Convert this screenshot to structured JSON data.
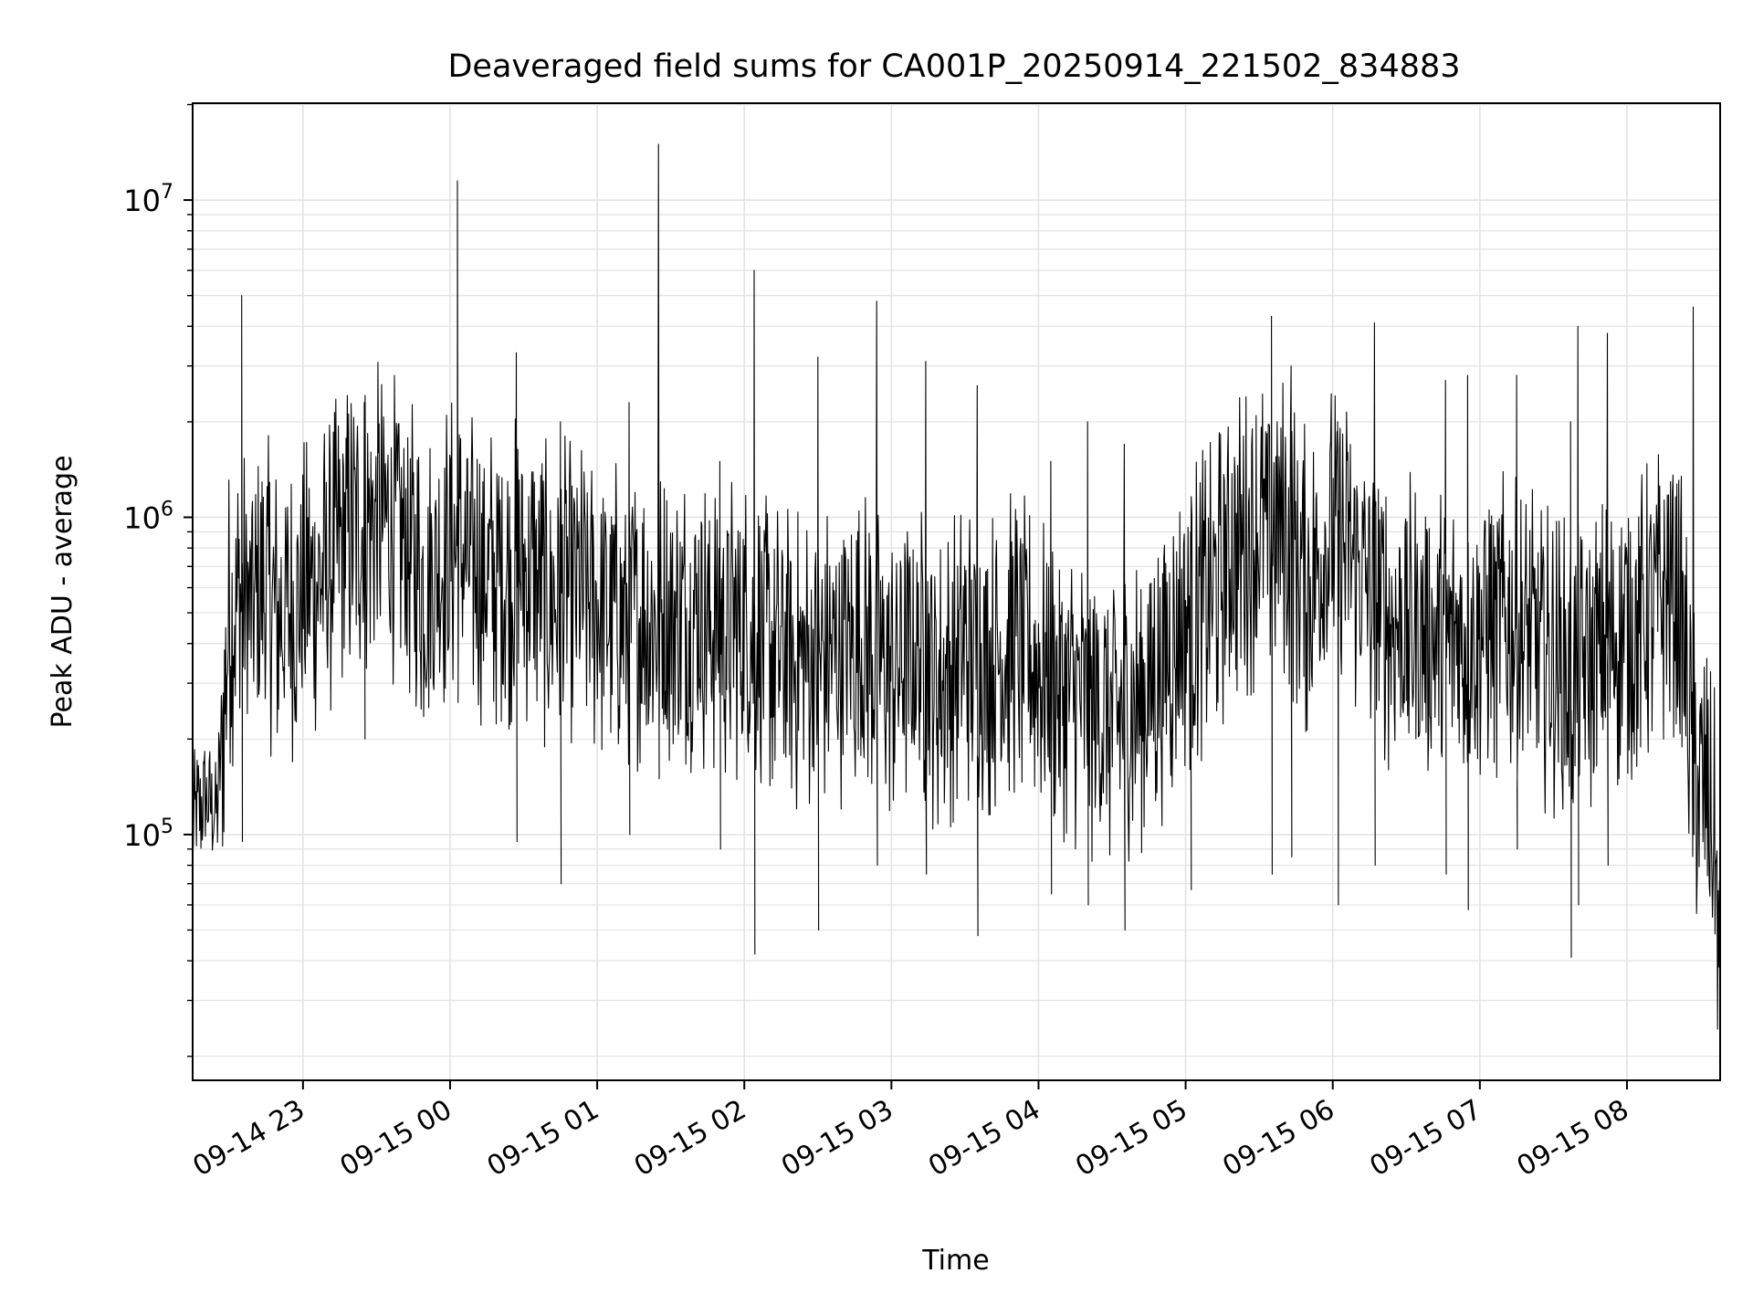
{
  "chart_data": {
    "type": "line",
    "title": "Deaveraged field sums for CA001P_20250914_221502_834883",
    "xlabel": "Time",
    "ylabel": "Peak ADU - average",
    "yscale": "log",
    "ylim": [
      16800,
      20200000
    ],
    "xlim": [
      "2025-09-14 22:15:00",
      "2025-09-15 08:38:00"
    ],
    "grid": true,
    "x_ticks": [
      {
        "t": "2025-09-14 23:00",
        "label": "09-14 23"
      },
      {
        "t": "2025-09-15 00:00",
        "label": "09-15 00"
      },
      {
        "t": "2025-09-15 01:00",
        "label": "09-15 01"
      },
      {
        "t": "2025-09-15 02:00",
        "label": "09-15 02"
      },
      {
        "t": "2025-09-15 03:00",
        "label": "09-15 03"
      },
      {
        "t": "2025-09-15 04:00",
        "label": "09-15 04"
      },
      {
        "t": "2025-09-15 05:00",
        "label": "09-15 05"
      },
      {
        "t": "2025-09-15 06:00",
        "label": "09-15 06"
      },
      {
        "t": "2025-09-15 07:00",
        "label": "09-15 07"
      },
      {
        "t": "2025-09-15 08:00",
        "label": "09-15 08"
      }
    ],
    "y_ticks": [
      {
        "value": 100000,
        "base": "10",
        "exp": "5"
      },
      {
        "value": 1000000,
        "base": "10",
        "exp": "6"
      },
      {
        "value": 10000000,
        "base": "10",
        "exp": "7"
      }
    ],
    "series": [
      {
        "color": "#000000",
        "x": [
          "2025-09-14 22:15",
          "2025-09-14 22:20",
          "2025-09-14 22:25",
          "2025-09-14 22:30",
          "2025-09-14 22:35",
          "2025-09-14 22:40",
          "2025-09-14 22:45",
          "2025-09-14 22:50",
          "2025-09-14 22:55",
          "2025-09-14 23:00",
          "2025-09-14 23:10",
          "2025-09-14 23:20",
          "2025-09-14 23:30",
          "2025-09-14 23:40",
          "2025-09-14 23:50",
          "2025-09-15 00:00",
          "2025-09-15 00:10",
          "2025-09-15 00:20",
          "2025-09-15 00:30",
          "2025-09-15 00:40",
          "2025-09-15 00:50",
          "2025-09-15 01:00",
          "2025-09-15 01:10",
          "2025-09-15 01:20",
          "2025-09-15 01:30",
          "2025-09-15 01:40",
          "2025-09-15 01:50",
          "2025-09-15 02:00",
          "2025-09-15 02:10",
          "2025-09-15 02:20",
          "2025-09-15 02:30",
          "2025-09-15 02:40",
          "2025-09-15 02:50",
          "2025-09-15 03:00",
          "2025-09-15 03:10",
          "2025-09-15 03:20",
          "2025-09-15 03:30",
          "2025-09-15 03:40",
          "2025-09-15 03:50",
          "2025-09-15 04:00",
          "2025-09-15 04:10",
          "2025-09-15 04:20",
          "2025-09-15 04:30",
          "2025-09-15 04:40",
          "2025-09-15 04:50",
          "2025-09-15 05:00",
          "2025-09-15 05:10",
          "2025-09-15 05:20",
          "2025-09-15 05:30",
          "2025-09-15 05:40",
          "2025-09-15 05:50",
          "2025-09-15 06:00",
          "2025-09-15 06:10",
          "2025-09-15 06:20",
          "2025-09-15 06:30",
          "2025-09-15 06:40",
          "2025-09-15 06:50",
          "2025-09-15 07:00",
          "2025-09-15 07:10",
          "2025-09-15 07:20",
          "2025-09-15 07:30",
          "2025-09-15 07:40",
          "2025-09-15 07:50",
          "2025-09-15 08:00",
          "2025-09-15 08:10",
          "2025-09-15 08:20",
          "2025-09-15 08:28",
          "2025-09-15 08:32",
          "2025-09-15 08:36",
          "2025-09-15 08:38"
        ],
        "y": [
          110000,
          130000,
          120000,
          500000,
          550000,
          500000,
          600000,
          480000,
          520000,
          560000,
          700000,
          900000,
          1000000,
          900000,
          600000,
          800000,
          700000,
          650000,
          700000,
          550000,
          600000,
          520000,
          500000,
          480000,
          470000,
          500000,
          450000,
          450000,
          400000,
          350000,
          350000,
          380000,
          400000,
          330000,
          380000,
          300000,
          380000,
          350000,
          400000,
          340000,
          300000,
          250000,
          230000,
          260000,
          330000,
          480000,
          550000,
          800000,
          900000,
          950000,
          600000,
          900000,
          700000,
          500000,
          450000,
          400000,
          420000,
          450000,
          450000,
          400000,
          350000,
          300000,
          380000,
          450000,
          500000,
          650000,
          150000,
          130000,
          90000,
          25000
        ],
        "spikes": [
          {
            "x": "2025-09-14 22:35",
            "peak": 5000000,
            "dip": 95000
          },
          {
            "x": "2025-09-14 23:25",
            "peak": 2300000,
            "dip": 200000
          },
          {
            "x": "2025-09-15 00:03",
            "peak": 11500000,
            "dip": 300000
          },
          {
            "x": "2025-09-15 00:27",
            "peak": 3300000,
            "dip": 95000
          },
          {
            "x": "2025-09-15 00:45",
            "peak": 2000000,
            "dip": 70000
          },
          {
            "x": "2025-09-15 01:13",
            "peak": 2300000,
            "dip": 100000
          },
          {
            "x": "2025-09-15 01:25",
            "peak": 15000000,
            "dip": 150000
          },
          {
            "x": "2025-09-15 01:50",
            "peak": 1500000,
            "dip": 90000
          },
          {
            "x": "2025-09-15 02:04",
            "peak": 6000000,
            "dip": 42000
          },
          {
            "x": "2025-09-15 02:30",
            "peak": 3200000,
            "dip": 50000
          },
          {
            "x": "2025-09-15 02:54",
            "peak": 4800000,
            "dip": 80000
          },
          {
            "x": "2025-09-15 03:14",
            "peak": 3100000,
            "dip": 75000
          },
          {
            "x": "2025-09-15 03:35",
            "peak": 2600000,
            "dip": 48000
          },
          {
            "x": "2025-09-15 04:05",
            "peak": 1500000,
            "dip": 65000
          },
          {
            "x": "2025-09-15 04:20",
            "peak": 2000000,
            "dip": 60000
          },
          {
            "x": "2025-09-15 04:35",
            "peak": 1700000,
            "dip": 50000
          },
          {
            "x": "2025-09-15 05:02",
            "peak": 900000,
            "dip": 67000
          },
          {
            "x": "2025-09-15 05:35",
            "peak": 4300000,
            "dip": 75000
          },
          {
            "x": "2025-09-15 05:43",
            "peak": 3000000,
            "dip": 85000
          },
          {
            "x": "2025-09-15 06:02",
            "peak": 2000000,
            "dip": 60000
          },
          {
            "x": "2025-09-15 06:17",
            "peak": 4100000,
            "dip": 80000
          },
          {
            "x": "2025-09-15 06:46",
            "peak": 2700000,
            "dip": 75000
          },
          {
            "x": "2025-09-15 06:55",
            "peak": 2800000,
            "dip": 58000
          },
          {
            "x": "2025-09-15 07:15",
            "peak": 2800000,
            "dip": 90000
          },
          {
            "x": "2025-09-15 07:37",
            "peak": 2000000,
            "dip": 41000
          },
          {
            "x": "2025-09-15 07:40",
            "peak": 4000000,
            "dip": 60000
          },
          {
            "x": "2025-09-15 07:52",
            "peak": 3800000,
            "dip": 80000
          },
          {
            "x": "2025-09-15 08:27",
            "peak": 4600000,
            "dip": 100000
          }
        ]
      }
    ]
  }
}
